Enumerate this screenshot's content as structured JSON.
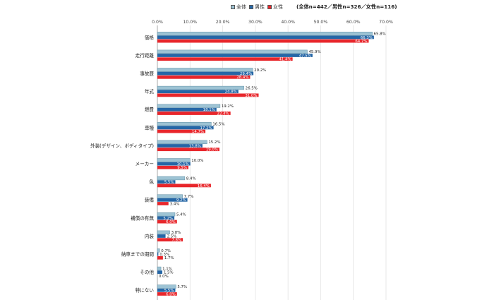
{
  "note": "(全体n=442／男性n=326／女性n=116)",
  "chart_data": {
    "type": "bar",
    "orientation": "horizontal",
    "categories": [
      "価格",
      "走行距離",
      "事故歴",
      "年式",
      "燃費",
      "車種",
      "外装(デザイン、ボディタイプ)",
      "メーカー",
      "色",
      "装備",
      "補償の有無",
      "内装",
      "納車までの期間",
      "その他",
      "特にない"
    ],
    "series": [
      {
        "name": "全体",
        "color": "#9dc3d4",
        "values": [
          65.8,
          45.9,
          29.2,
          26.5,
          19.2,
          16.5,
          15.2,
          10.0,
          8.4,
          7.7,
          5.4,
          3.8,
          0.7,
          1.1,
          5.7
        ]
      },
      {
        "name": "男性",
        "color": "#2566a6",
        "values": [
          66.3,
          47.5,
          29.4,
          24.8,
          18.1,
          17.2,
          13.8,
          10.1,
          5.5,
          9.2,
          5.2,
          2.5,
          0.3,
          1.5,
          5.5
        ]
      },
      {
        "name": "女性",
        "color": "#e8262b",
        "values": [
          64.7,
          41.4,
          28.4,
          31.0,
          22.4,
          14.7,
          19.0,
          9.5,
          16.4,
          3.4,
          6.0,
          7.8,
          1.7,
          0.0,
          6.0
        ]
      }
    ],
    "xlim": [
      0,
      70
    ],
    "xticks": [
      "0.0%",
      "10.0%",
      "20.0%",
      "30.0%",
      "40.0%",
      "50.0%",
      "60.0%",
      "70.0%"
    ],
    "xtick_values": [
      0,
      10,
      20,
      30,
      40,
      50,
      60,
      70
    ],
    "value_suffix": "%",
    "grid": true,
    "legend_position": "top-right"
  }
}
